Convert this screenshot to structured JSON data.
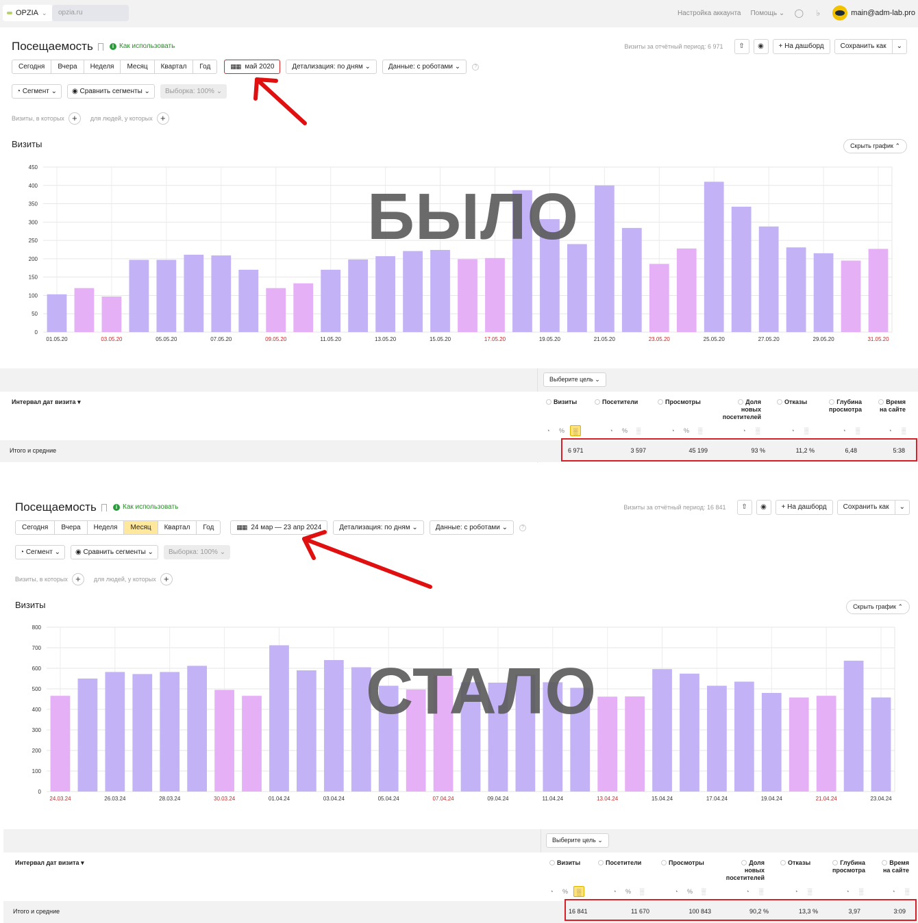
{
  "topbar": {
    "counter_label": "OPZIA",
    "site": "opzia.ru",
    "account_settings": "Настройка аккаунта",
    "help": "Помощь",
    "user_email": "main@adm-lab.pro"
  },
  "report_before": {
    "title": "Посещаемость",
    "howto": "Как использовать",
    "visits_total": "Визиты за отчётный период: 6 971",
    "to_dashboard": "На дашборд",
    "save_as": "Сохранить как",
    "periods": [
      "Сегодня",
      "Вчера",
      "Неделя",
      "Месяц",
      "Квартал",
      "Год"
    ],
    "active_period": "",
    "date_range": "май 2020",
    "detail": "Детализация: по дням",
    "data_mode": "Данные: с роботами",
    "segment": "Сегмент",
    "compare": "Сравнить сегменты",
    "sample": "Выборка: 100%",
    "visits_where": "Визиты, в которых",
    "people_where": "для людей, у которых",
    "chart_title": "Визиты",
    "hide_chart": "Скрыть график",
    "overlay_word": "БЫЛО",
    "choose_goal": "Выберите цель",
    "dimension": "Интервал дат визита",
    "total_label": "Итого и средние",
    "columns": [
      "Визиты",
      "Посетители",
      "Просмотры",
      "Доля новых посетителей",
      "Отказы",
      "Глубина просмотра",
      "Время на сайте"
    ],
    "totals": [
      "6 971",
      "3 597",
      "45 199",
      "93 %",
      "11,2 %",
      "6,48",
      "5:38"
    ]
  },
  "report_after": {
    "title": "Посещаемость",
    "howto": "Как использовать",
    "visits_total": "Визиты за отчётный период: 16 841",
    "to_dashboard": "На дашборд",
    "save_as": "Сохранить как",
    "periods": [
      "Сегодня",
      "Вчера",
      "Неделя",
      "Месяц",
      "Квартал",
      "Год"
    ],
    "active_period": "Месяц",
    "date_range": "24 мар — 23 апр 2024",
    "detail": "Детализация: по дням",
    "data_mode": "Данные: с роботами",
    "segment": "Сегмент",
    "compare": "Сравнить сегменты",
    "sample": "Выборка: 100%",
    "visits_where": "Визиты, в которых",
    "people_where": "для людей, у которых",
    "chart_title": "Визиты",
    "hide_chart": "Скрыть график",
    "overlay_word": "СТАЛО",
    "choose_goal": "Выберите цель",
    "dimension": "Интервал дат визита",
    "total_label": "Итого и средние",
    "columns": [
      "Визиты",
      "Посетители",
      "Просмотры",
      "Доля новых посетителей",
      "Отказы",
      "Глубина просмотра",
      "Время на сайте"
    ],
    "totals": [
      "16 841",
      "11 670",
      "100 843",
      "90,2 %",
      "13,3 %",
      "3,97",
      "3:09"
    ]
  },
  "colors": {
    "weekday_bar": "#c3b2f5",
    "weekend_bar": "#e6b0f6",
    "weekend_label": "#c62828",
    "accent_red": "#e01010"
  },
  "chart_data": [
    {
      "type": "bar",
      "title": "Визиты",
      "ylim": [
        0,
        450
      ],
      "yticks": [
        0,
        50,
        100,
        150,
        200,
        250,
        300,
        350,
        400,
        450
      ],
      "categories": [
        "01.05.20",
        "02.05.20",
        "03.05.20",
        "04.05.20",
        "05.05.20",
        "06.05.20",
        "07.05.20",
        "08.05.20",
        "09.05.20",
        "10.05.20",
        "11.05.20",
        "12.05.20",
        "13.05.20",
        "14.05.20",
        "15.05.20",
        "16.05.20",
        "17.05.20",
        "18.05.20",
        "19.05.20",
        "20.05.20",
        "21.05.20",
        "22.05.20",
        "23.05.20",
        "24.05.20",
        "25.05.20",
        "26.05.20",
        "27.05.20",
        "28.05.20",
        "29.05.20",
        "30.05.20",
        "31.05.20"
      ],
      "values": [
        103,
        120,
        97,
        197,
        197,
        211,
        209,
        170,
        120,
        133,
        170,
        198,
        207,
        221,
        224,
        199,
        202,
        387,
        308,
        240,
        400,
        284,
        186,
        228,
        410,
        342,
        288,
        231,
        215,
        195,
        227
      ],
      "weekend": [
        false,
        true,
        true,
        false,
        false,
        false,
        false,
        false,
        true,
        true,
        false,
        false,
        false,
        false,
        false,
        true,
        true,
        false,
        false,
        false,
        false,
        false,
        true,
        true,
        false,
        false,
        false,
        false,
        false,
        true,
        true
      ],
      "shown_labels": [
        "01.05.20",
        "03.05.20",
        "05.05.20",
        "07.05.20",
        "09.05.20",
        "11.05.20",
        "13.05.20",
        "15.05.20",
        "17.05.20",
        "19.05.20",
        "21.05.20",
        "23.05.20",
        "25.05.20",
        "27.05.20",
        "29.05.20",
        "31.05.20"
      ]
    },
    {
      "type": "bar",
      "title": "Визиты",
      "ylim": [
        0,
        800
      ],
      "yticks": [
        0,
        100,
        200,
        300,
        400,
        500,
        600,
        700,
        800
      ],
      "categories": [
        "24.03.24",
        "25.03.24",
        "26.03.24",
        "27.03.24",
        "28.03.24",
        "29.03.24",
        "30.03.24",
        "31.03.24",
        "01.04.24",
        "02.04.24",
        "03.04.24",
        "04.04.24",
        "05.04.24",
        "06.04.24",
        "07.04.24",
        "08.04.24",
        "09.04.24",
        "10.04.24",
        "11.04.24",
        "12.04.24",
        "13.04.24",
        "14.04.24",
        "15.04.24",
        "16.04.24",
        "17.04.24",
        "18.04.24",
        "19.04.24",
        "20.04.24",
        "21.04.24",
        "22.04.24",
        "23.04.24"
      ],
      "values": [
        466,
        550,
        582,
        572,
        582,
        612,
        495,
        466,
        712,
        590,
        640,
        605,
        515,
        497,
        565,
        532,
        530,
        570,
        532,
        505,
        462,
        463,
        596,
        574,
        515,
        535,
        480,
        458,
        466,
        637,
        458
      ],
      "weekend": [
        true,
        false,
        false,
        false,
        false,
        false,
        true,
        true,
        false,
        false,
        false,
        false,
        false,
        true,
        true,
        false,
        false,
        false,
        false,
        false,
        true,
        true,
        false,
        false,
        false,
        false,
        false,
        true,
        true,
        false,
        false
      ],
      "shown_labels": [
        "24.03.24",
        "26.03.24",
        "28.03.24",
        "30.03.24",
        "01.04.24",
        "03.04.24",
        "05.04.24",
        "07.04.24",
        "09.04.24",
        "11.04.24",
        "13.04.24",
        "15.04.24",
        "17.04.24",
        "19.04.24",
        "21.04.24",
        "23.04.24"
      ]
    }
  ]
}
